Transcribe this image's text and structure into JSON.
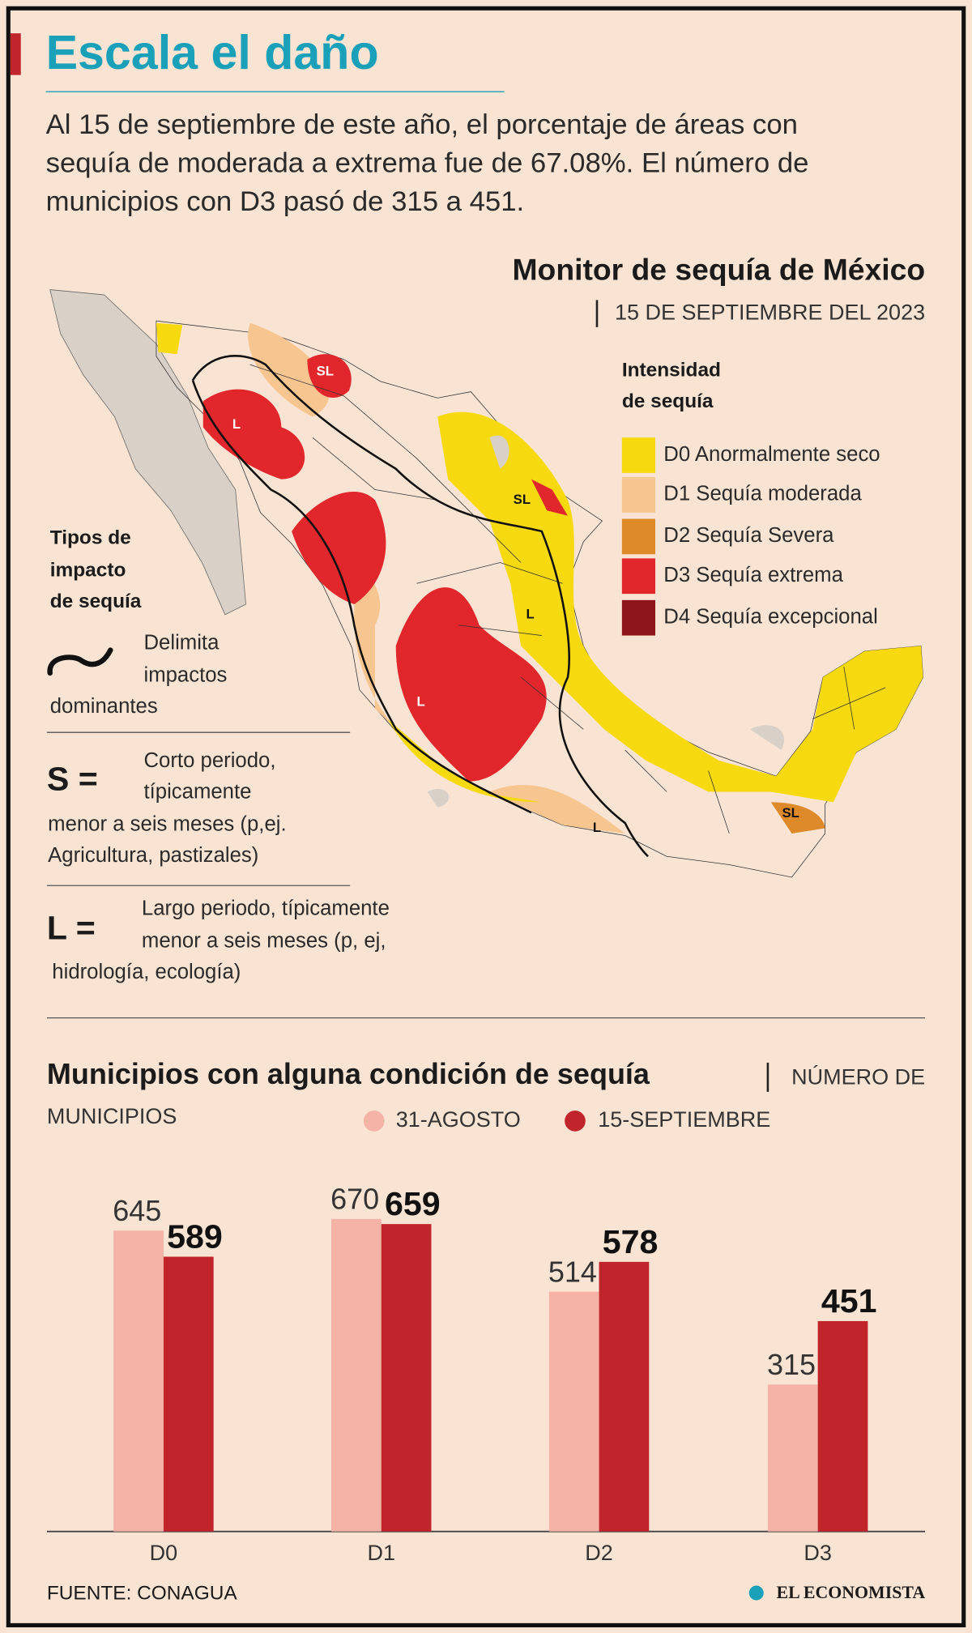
{
  "header": {
    "title": "Escala el daño",
    "intro": [
      "Al 15 de septiembre de este año, el porcentaje de áreas con",
      "sequía de moderada a extrema fue de 67.08%. El número de",
      "municipios con D3 pasó de 315 a 451."
    ]
  },
  "map": {
    "title": "Monitor de sequía de México",
    "date": "15 DE SEPTIEMBRE DEL 2023",
    "legend_title": [
      "Intensidad",
      "de sequía"
    ],
    "legend": [
      {
        "label": "D0 Anormalmente seco",
        "color": "#f6d90f"
      },
      {
        "label": "D1 Sequía moderada",
        "color": "#f7c58f"
      },
      {
        "label": "D2 Sequía Severa",
        "color": "#df8a2a"
      },
      {
        "label": "D3 Sequía extrema",
        "color": "#e1262c"
      },
      {
        "label": "D4 Sequía excepcional",
        "color": "#8e1519"
      }
    ],
    "labels": [
      "SL",
      "L",
      "SL",
      "L",
      "L",
      "L",
      "SL"
    ]
  },
  "impact": {
    "title": [
      "Tipos de",
      "impacto",
      "de sequía"
    ],
    "delimita": [
      "Delimita",
      "impactos",
      "dominantes"
    ],
    "s_key": "S =",
    "s_text": [
      "Corto periodo,",
      "típicamente",
      "menor a seis meses (p,ej.",
      "Agricultura, pastizales)"
    ],
    "l_key": "L =",
    "l_text": [
      "Largo periodo, típicamente",
      "menor a seis meses (p, ej,",
      "hidrología, ecología)"
    ]
  },
  "chart_data": {
    "type": "bar",
    "title": "Municipios con alguna condición de sequía",
    "subtitle": [
      "NÚMERO DE",
      "MUNICIPIOS"
    ],
    "categories": [
      "D0",
      "D1",
      "D2",
      "D3"
    ],
    "series": [
      {
        "name": "31-AGOSTO",
        "color": "#f4b3a6",
        "values": [
          645,
          670,
          514,
          315
        ]
      },
      {
        "name": "15-SEPTIEMBRE",
        "color": "#c0252c",
        "values": [
          589,
          659,
          578,
          451
        ]
      }
    ]
  },
  "footer": {
    "source": "FUENTE: CONAGUA",
    "brand": "EL ECONOMISTA"
  }
}
